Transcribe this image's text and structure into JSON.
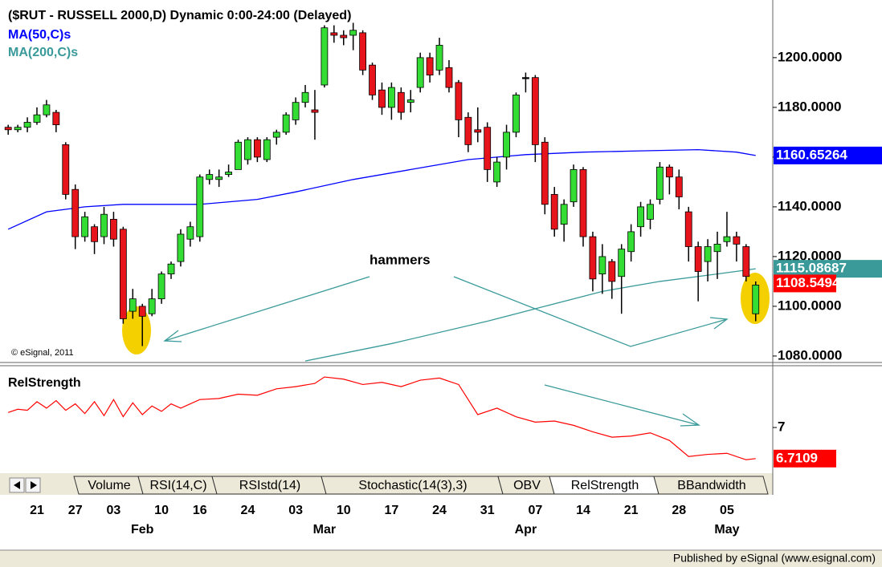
{
  "chart_data": [
    {
      "type": "candlestick",
      "title": "($RUT - RUSSELL 2000,D) Dynamic 0:00-24:00 (Delayed)",
      "categories": [
        null,
        null,
        null,
        "21",
        null,
        null,
        null,
        "27",
        null,
        null,
        null,
        "03",
        null,
        null,
        null,
        null,
        "10",
        null,
        null,
        null,
        "16",
        null,
        null,
        null,
        null,
        "24",
        null,
        null,
        null,
        null,
        "03",
        null,
        null,
        null,
        null,
        "10",
        null,
        null,
        null,
        null,
        "17",
        null,
        null,
        null,
        null,
        "24",
        null,
        null,
        null,
        null,
        "31",
        null,
        null,
        null,
        null,
        "07",
        null,
        null,
        null,
        null,
        "14",
        null,
        null,
        null,
        null,
        "21",
        null,
        null,
        null,
        null,
        "28",
        null,
        null,
        null,
        null,
        "05",
        null,
        null,
        null
      ],
      "months": [
        null,
        null,
        null,
        null,
        null,
        null,
        null,
        null,
        null,
        null,
        null,
        null,
        null,
        null,
        "Feb",
        null,
        null,
        null,
        null,
        null,
        null,
        null,
        null,
        null,
        null,
        null,
        null,
        null,
        null,
        null,
        null,
        null,
        null,
        "Mar",
        null,
        null,
        null,
        null,
        null,
        null,
        null,
        null,
        null,
        null,
        null,
        null,
        null,
        null,
        null,
        null,
        null,
        null,
        null,
        null,
        "Apr",
        null,
        null,
        null,
        null,
        null,
        null,
        null,
        null,
        null,
        null,
        null,
        null,
        null,
        null,
        null,
        null,
        null,
        null,
        null,
        null,
        "May",
        null,
        null,
        null
      ],
      "open": [
        1172,
        1171,
        1172,
        1174,
        1177,
        1178,
        1165,
        1147,
        1128,
        1132,
        1128,
        1135,
        1131,
        1098,
        1100,
        1097,
        1103,
        1113,
        1118,
        1127,
        1128,
        1151,
        1151,
        1153,
        1155,
        1159,
        1167,
        1159,
        1168,
        1170,
        1175,
        1182,
        1179,
        1189,
        1210,
        1209,
        1209,
        1210,
        1197,
        1187,
        1180,
        1186,
        1182,
        1188,
        1200,
        1195,
        1196,
        1190,
        1176,
        1171,
        1172,
        1150,
        1160,
        1170,
        1192,
        1192,
        1166,
        1145,
        1133,
        1142,
        1155,
        1128,
        1113,
        1118,
        1112,
        1122,
        1132,
        1135,
        1143,
        1156,
        1152,
        1138,
        1124,
        1118,
        1122,
        1126,
        1128,
        1124,
        1097
      ],
      "high": [
        1173,
        1173,
        1176,
        1180,
        1183,
        1179,
        1166,
        1149,
        1138,
        1133,
        1140,
        1138,
        1132,
        1107,
        1101,
        1107,
        1114,
        1118,
        1131,
        1134,
        1153,
        1155,
        1155,
        1157,
        1167,
        1168,
        1168,
        1168,
        1171,
        1178,
        1184,
        1189,
        1187,
        1213,
        1213,
        1211,
        1214,
        1211,
        1198,
        1190,
        1190,
        1188,
        1187,
        1202,
        1202,
        1208,
        1199,
        1191,
        1178,
        1180,
        1174,
        1160,
        1173,
        1186,
        1194,
        1193,
        1168,
        1148,
        1143,
        1157,
        1156,
        1130,
        1125,
        1119,
        1125,
        1133,
        1142,
        1143,
        1158,
        1157,
        1155,
        1140,
        1126,
        1127,
        1130,
        1138,
        1130,
        1125,
        1110
      ],
      "low": [
        1169,
        1170,
        1170,
        1173,
        1176,
        1170,
        1143,
        1123,
        1126,
        1121,
        1125,
        1124,
        1093,
        1095,
        1084,
        1096,
        1101,
        1111,
        1116,
        1124,
        1126,
        1149,
        1148,
        1152,
        1155,
        1157,
        1158,
        1158,
        1165,
        1169,
        1173,
        1180,
        1167,
        1188,
        1206,
        1205,
        1203,
        1193,
        1183,
        1177,
        1175,
        1175,
        1178,
        1186,
        1190,
        1193,
        1186,
        1168,
        1162,
        1166,
        1150,
        1148,
        1155,
        1168,
        1186,
        1158,
        1137,
        1128,
        1126,
        1140,
        1124,
        1106,
        1105,
        1103,
        1097,
        1118,
        1128,
        1131,
        1141,
        1145,
        1139,
        1118,
        1102,
        1110,
        1111,
        1124,
        1118,
        1110,
        1094
      ],
      "close": [
        1171,
        1172,
        1174,
        1177,
        1181,
        1173,
        1145,
        1128,
        1136,
        1126,
        1137,
        1127,
        1095,
        1103,
        1096,
        1103,
        1113,
        1117,
        1129,
        1132,
        1152,
        1153,
        1152,
        1154,
        1166,
        1167,
        1160,
        1167,
        1170,
        1177,
        1182,
        1186,
        1178,
        1212,
        1209,
        1208,
        1211,
        1195,
        1185,
        1180,
        1188,
        1178,
        1183,
        1200,
        1193,
        1205,
        1188,
        1175,
        1165,
        1170,
        1155,
        1158,
        1170,
        1185,
        1192,
        1165,
        1141,
        1131,
        1141,
        1155,
        1128,
        1111,
        1120,
        1110,
        1123,
        1130,
        1140,
        1141,
        1156,
        1152,
        1144,
        1124,
        1114,
        1124,
        1125,
        1128,
        1125,
        1112,
        1108.5494
      ],
      "up_color": "#33dd33",
      "down_color": "#e8141b",
      "ylim": [
        1077.4,
        1220.6
      ],
      "yticks": [
        {
          "value": 1080,
          "label": "1080.0000"
        },
        {
          "value": 1100,
          "label": "1100.0000"
        },
        {
          "value": 1120,
          "label": "1120.0000"
        },
        {
          "value": 1140,
          "label": "1140.0000"
        },
        {
          "value": 1160,
          "label": "1160.0000"
        },
        {
          "value": 1180,
          "label": "1180.0000"
        },
        {
          "value": 1200,
          "label": "1200.0000"
        }
      ],
      "last_color": "#ff0000",
      "series": [
        {
          "name": "MA(50,C)s",
          "color": "#0000ff",
          "x": [
            0,
            4,
            8,
            12,
            20,
            26,
            30,
            36,
            42,
            48,
            54,
            60,
            66,
            72,
            76,
            78
          ],
          "values": [
            1131,
            1138,
            1140,
            1141,
            1141,
            1143,
            1146,
            1151,
            1155,
            1159,
            1161,
            1162,
            1162.5,
            1163,
            1162,
            1160.65264
          ]
        },
        {
          "name": "MA(200,C)s",
          "color": "#3a9a9a",
          "x": [
            31,
            40,
            50,
            56,
            62,
            68,
            74,
            78
          ],
          "values": [
            1078,
            1085,
            1094,
            1100,
            1106,
            1110,
            1113,
            1115.08687
          ]
        }
      ],
      "annotation": "hammers",
      "copyright": "© eSignal, 2011"
    },
    {
      "type": "line",
      "title": "RelStrength",
      "color": "#ff0000",
      "x": [
        0,
        1,
        2,
        3,
        4,
        5,
        6,
        7,
        8,
        9,
        10,
        11,
        12,
        13,
        14,
        15,
        16,
        17,
        18,
        20,
        22,
        24,
        26,
        28,
        30,
        32,
        33,
        35,
        37,
        39,
        41,
        43,
        45,
        47,
        49,
        51,
        53,
        55,
        57,
        59,
        61,
        63,
        65,
        67,
        69,
        71,
        73,
        75,
        77,
        78
      ],
      "values": [
        7.14,
        7.17,
        7.16,
        7.24,
        7.18,
        7.25,
        7.16,
        7.22,
        7.13,
        7.24,
        7.11,
        7.26,
        7.1,
        7.23,
        7.12,
        7.2,
        7.15,
        7.22,
        7.18,
        7.26,
        7.27,
        7.31,
        7.3,
        7.36,
        7.38,
        7.41,
        7.47,
        7.45,
        7.4,
        7.42,
        7.38,
        7.44,
        7.46,
        7.4,
        7.12,
        7.18,
        7.1,
        7.05,
        7.06,
        7.02,
        6.96,
        6.91,
        6.92,
        6.95,
        6.88,
        6.73,
        6.75,
        6.76,
        6.7,
        6.7109
      ],
      "ylim": [
        6.59,
        7.56
      ],
      "yticks": [
        7
      ]
    }
  ],
  "tabs": [
    "Volume",
    "RSI(14,C)",
    "RSIstd(14)",
    "Stochastic(14(3),3)",
    "OBV",
    "RelStrength",
    "BBandwidth"
  ],
  "active_tab": 5,
  "footer": "Published by eSignal (www.esignal.com)"
}
